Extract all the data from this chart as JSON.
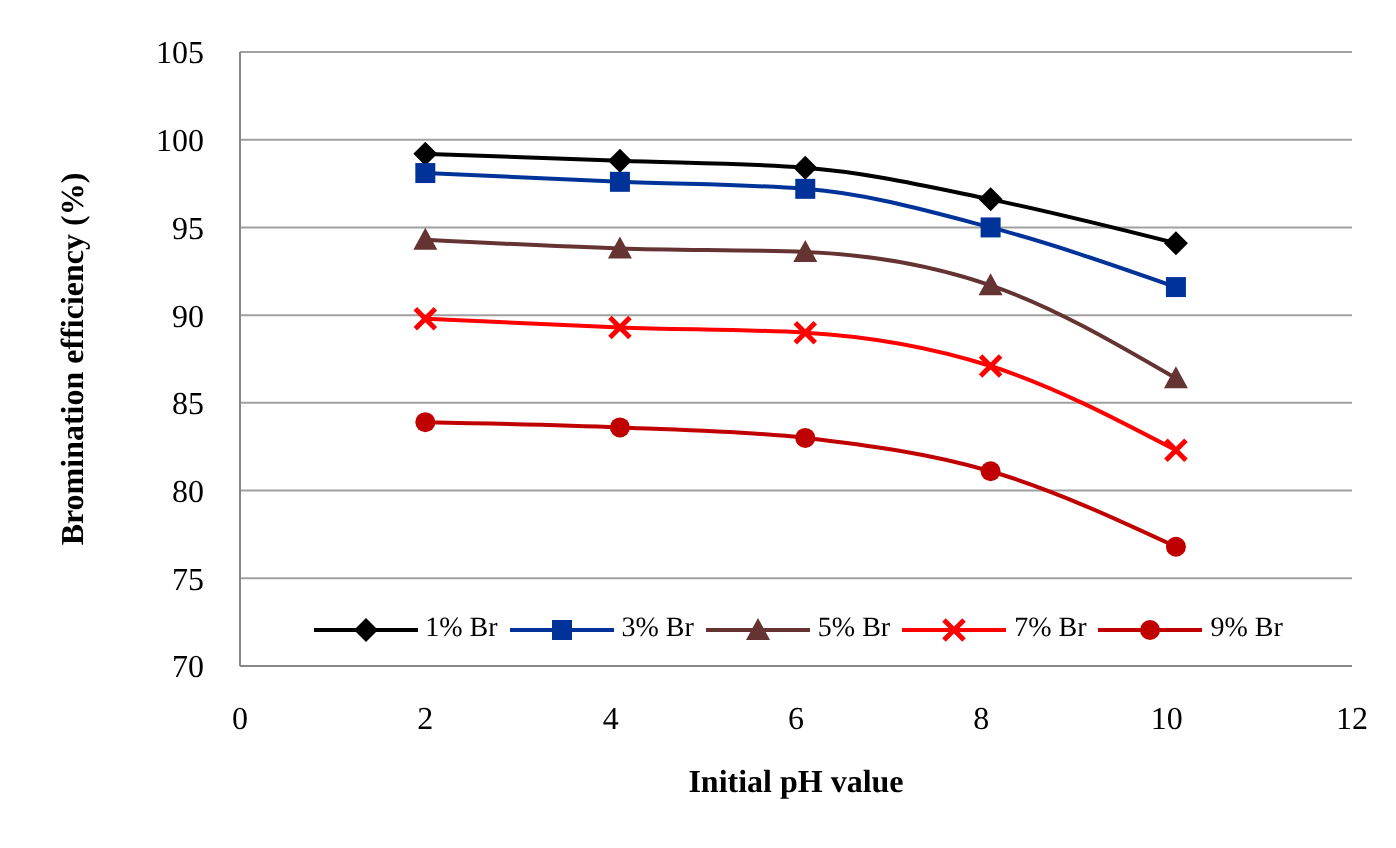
{
  "chart_data": {
    "type": "line",
    "xlabel": "Initial pH value",
    "ylabel": "Bromination efficiency (%)",
    "xlim": [
      0,
      12
    ],
    "xticks": [
      0,
      2,
      4,
      6,
      8,
      10,
      12
    ],
    "ylim": [
      70,
      105
    ],
    "yticks": [
      70,
      75,
      80,
      85,
      90,
      95,
      100,
      105
    ],
    "grid": "y",
    "legend": "bottom",
    "line_style": "solid",
    "x": [
      2,
      4.1,
      6.1,
      8.1,
      10.1
    ],
    "series": [
      {
        "name": "1% Br",
        "color": "#000000",
        "marker": "diamond",
        "values": [
          99.2,
          98.8,
          98.4,
          96.6,
          94.1
        ]
      },
      {
        "name": "3% Br",
        "color": "#003399",
        "marker": "square",
        "values": [
          98.1,
          97.6,
          97.2,
          95.0,
          91.6
        ]
      },
      {
        "name": "5% Br",
        "color": "#663333",
        "marker": "triangle",
        "values": [
          94.3,
          93.8,
          93.6,
          91.7,
          86.4
        ]
      },
      {
        "name": "7% Br",
        "color": "#ff0000",
        "marker": "cross",
        "values": [
          89.8,
          89.3,
          89.0,
          87.1,
          82.3
        ]
      },
      {
        "name": "9% Br",
        "color": "#c00000",
        "marker": "circle",
        "values": [
          83.9,
          83.6,
          83.0,
          81.1,
          76.8
        ]
      }
    ]
  }
}
